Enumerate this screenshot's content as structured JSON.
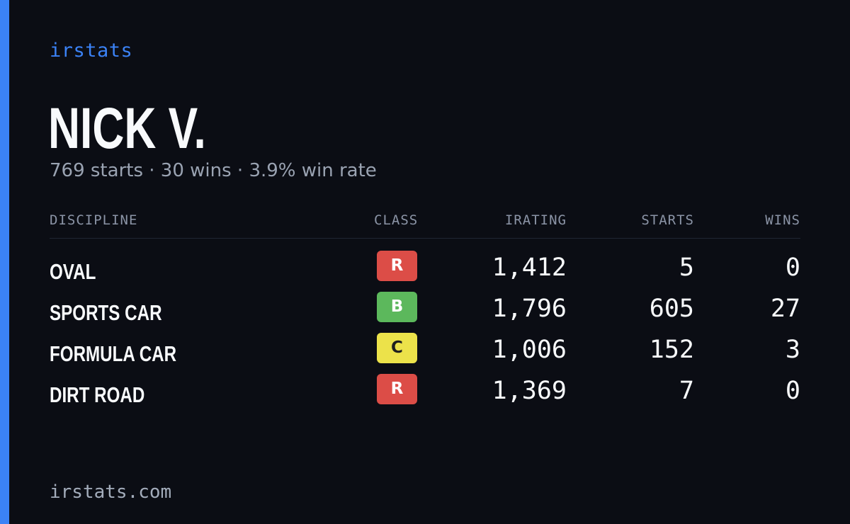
{
  "brand": "irstats",
  "driver": {
    "name": "NICK V.",
    "summary": "769 starts · 30 wins · 3.9% win rate"
  },
  "table": {
    "headers": {
      "discipline": "DISCIPLINE",
      "class": "CLASS",
      "irating": "IRATING",
      "starts": "STARTS",
      "wins": "WINS"
    },
    "rows": [
      {
        "discipline": "OVAL",
        "class": "R",
        "class_color": "#dc4d47",
        "class_text_color": "#ffffff",
        "irating": "1,412",
        "starts": "5",
        "wins": "0"
      },
      {
        "discipline": "SPORTS CAR",
        "class": "B",
        "class_color": "#5cb85c",
        "class_text_color": "#ffffff",
        "irating": "1,796",
        "starts": "605",
        "wins": "27"
      },
      {
        "discipline": "FORMULA CAR",
        "class": "C",
        "class_color": "#ece24a",
        "class_text_color": "#1f1f1f",
        "irating": "1,006",
        "starts": "152",
        "wins": "3"
      },
      {
        "discipline": "DIRT ROAD",
        "class": "R",
        "class_color": "#dc4d47",
        "class_text_color": "#ffffff",
        "irating": "1,369",
        "starts": "7",
        "wins": "0"
      }
    ]
  },
  "footer": "irstats.com",
  "colors": {
    "accent": "#3b82f6",
    "background": "#0b0d14"
  }
}
